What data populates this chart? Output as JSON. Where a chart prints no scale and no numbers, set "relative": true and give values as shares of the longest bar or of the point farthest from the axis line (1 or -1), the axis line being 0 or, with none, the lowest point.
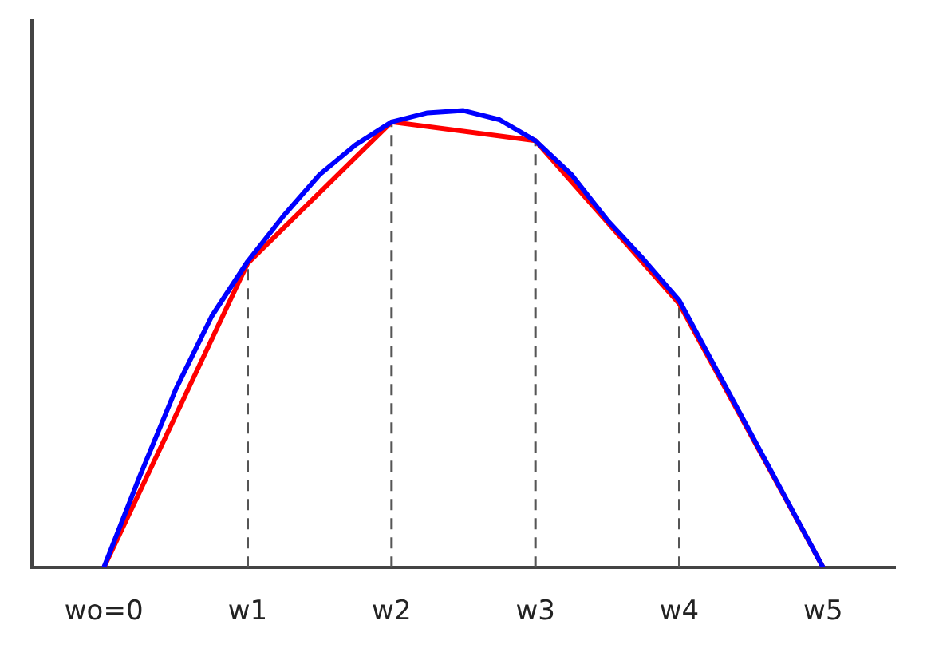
{
  "chart_data": {
    "type": "line",
    "relative": true,
    "categories": [
      null,
      null,
      "wo=0",
      null,
      null,
      null,
      "w1",
      null,
      null,
      null,
      "w2",
      null,
      null,
      null,
      "w3",
      null,
      null,
      null,
      "w4",
      null,
      null,
      null,
      "w5",
      null,
      null
    ],
    "series": [
      {
        "color": "#0000ff",
        "values": [
          null,
          null,
          0,
          0.2,
          0.39,
          0.55,
          0.67,
          0.77,
          0.86,
          0.925,
          0.975,
          0.995,
          1,
          0.98,
          0.934,
          0.86,
          0.76,
          0.675,
          0.584,
          0.438,
          0.292,
          0.146,
          0,
          null,
          null
        ]
      },
      {
        "color": "#ff0000",
        "values": [
          null,
          null,
          0,
          null,
          null,
          null,
          0.666,
          null,
          null,
          null,
          0.975,
          null,
          null,
          null,
          0.934,
          null,
          null,
          null,
          0.577,
          null,
          null,
          null,
          0,
          null,
          null
        ]
      }
    ],
    "ref_lines": [
      {
        "axis": "x",
        "value": "w1",
        "color": "#555555",
        "line_style": "dashed"
      },
      {
        "axis": "x",
        "value": "w2",
        "color": "#555555",
        "line_style": "dashed"
      },
      {
        "axis": "x",
        "value": "w3",
        "color": "#555555",
        "line_style": "dashed"
      },
      {
        "axis": "x",
        "value": "w4",
        "color": "#555555",
        "line_style": "dashed"
      }
    ],
    "grid": false,
    "legend": false,
    "marker": "none",
    "line_style": "solid"
  }
}
